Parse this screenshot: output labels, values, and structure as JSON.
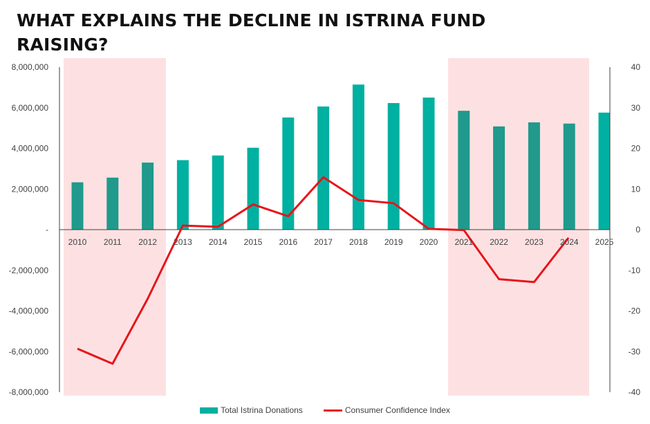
{
  "chart_data": {
    "type": "bar",
    "title": "WHAT EXPLAINS THE DECLINE IN ISTRINA FUND RAISING?",
    "categories": [
      "2010",
      "2011",
      "2012",
      "2013",
      "2014",
      "2015",
      "2016",
      "2017",
      "2018",
      "2019",
      "2020",
      "2021",
      "2022",
      "2023",
      "2024",
      "2025"
    ],
    "series": [
      {
        "name": "Total Istrina Donations",
        "type": "bar",
        "axis": "left",
        "values": [
          2330000,
          2560000,
          3300000,
          3420000,
          3650000,
          4030000,
          5520000,
          6060000,
          7140000,
          6230000,
          6500000,
          5850000,
          5080000,
          5280000,
          5220000,
          5760000
        ]
      },
      {
        "name": "Consumer Confidence Index",
        "type": "line",
        "axis": "right",
        "values": [
          -29.3,
          -33.0,
          -17.0,
          1.0,
          0.7,
          6.2,
          3.3,
          12.9,
          7.3,
          6.5,
          0.2,
          -0.1,
          -12.2,
          -12.9,
          null,
          null
        ],
        "endpoint": {
          "x_index": 13.98,
          "value": -2.0
        }
      }
    ],
    "y_left": {
      "ticks": [
        8000000,
        6000000,
        4000000,
        2000000,
        0,
        -2000000,
        -4000000,
        -6000000,
        -8000000
      ],
      "tick_labels": [
        "8,000,000",
        "6,000,000",
        "4,000,000",
        "2,000,000",
        "-",
        "-2,000,000",
        "-4,000,000",
        "-6,000,000",
        "-8,000,000"
      ],
      "range": [
        -8000000,
        8000000
      ]
    },
    "y_right": {
      "ticks": [
        40,
        30,
        20,
        10,
        0,
        -10,
        -20,
        -30,
        -40
      ],
      "range": [
        -40,
        40
      ]
    },
    "shaded_periods": [
      [
        "2010",
        "2012"
      ],
      [
        "2021",
        "2024"
      ]
    ],
    "grid": false,
    "legend_position": "bottom"
  },
  "colors": {
    "bar": "#00B0A0",
    "bar_shaded": "#1F9A8C",
    "line": "#E8141A",
    "shade": "#FDE1E2",
    "axis": "#404040"
  }
}
